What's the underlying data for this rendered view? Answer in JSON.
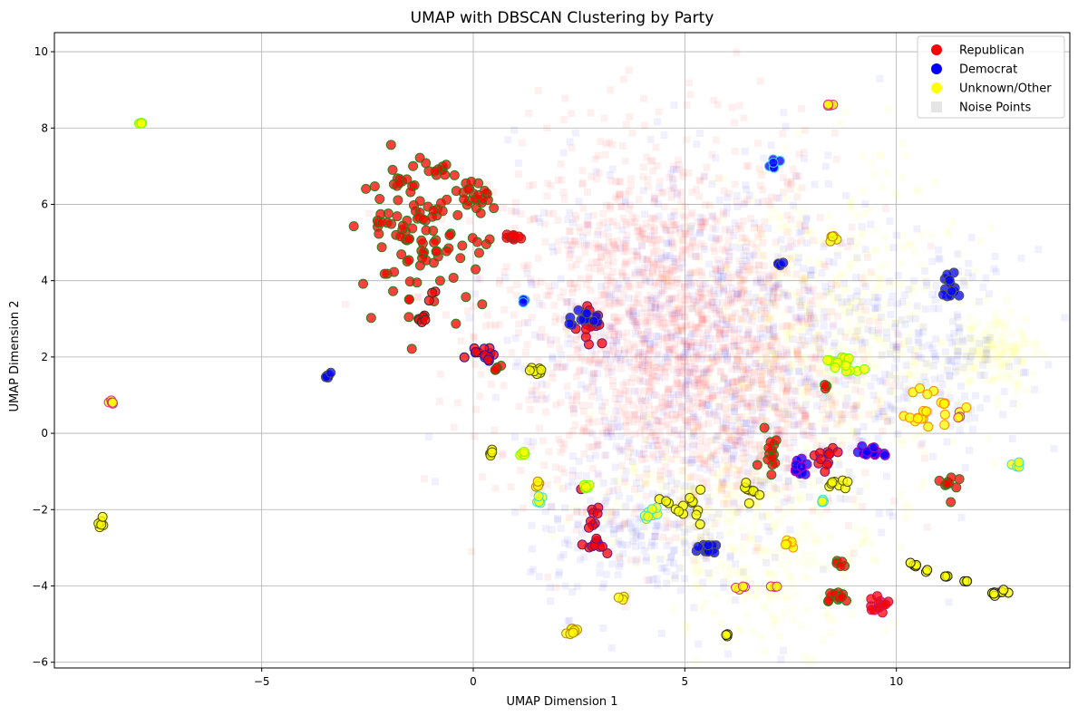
{
  "chart_data": {
    "type": "scatter",
    "title": "UMAP with DBSCAN Clustering by Party",
    "xlabel": "UMAP Dimension 1",
    "ylabel": "UMAP Dimension 2",
    "xlim": [
      -9.9,
      14.1
    ],
    "ylim": [
      -6.15,
      10.5
    ],
    "x_ticks": [
      -5,
      0,
      5,
      10
    ],
    "y_ticks": [
      -6,
      -4,
      -2,
      0,
      2,
      4,
      6,
      8,
      10
    ],
    "x_tick_labels": [
      "−5",
      "0",
      "5",
      "10"
    ],
    "y_tick_labels": [
      "−6",
      "−4",
      "−2",
      "0",
      "2",
      "4",
      "6",
      "8",
      "10"
    ],
    "grid": true,
    "legend_position": "top-right",
    "colors": {
      "Republican": "#ff0000",
      "Democrat": "#0000ff",
      "Unknown/Other": "#ffff00",
      "Noise Points": "#d3d3d3"
    },
    "legend": [
      {
        "label": "Republican",
        "color": "#ff0000",
        "marker": "circle"
      },
      {
        "label": "Democrat",
        "color": "#0000ff",
        "marker": "circle"
      },
      {
        "label": "Unknown/Other",
        "color": "#ffff00",
        "marker": "circle"
      },
      {
        "label": "Noise Points",
        "color": "#d3d3d3",
        "marker": "square"
      }
    ],
    "noise_clouds": [
      {
        "party": "Republican",
        "cx": 4.5,
        "cy": 3.0,
        "sx": 2.0,
        "sy": 2.4,
        "n": 1400
      },
      {
        "party": "Republican",
        "cx": 6.2,
        "cy": 1.0,
        "sx": 1.6,
        "sy": 1.6,
        "n": 500
      },
      {
        "party": "Democrat",
        "cx": 5.8,
        "cy": 2.2,
        "sx": 2.4,
        "sy": 2.6,
        "n": 850
      },
      {
        "party": "Democrat",
        "cx": 4.0,
        "cy": -2.8,
        "sx": 1.3,
        "sy": 0.9,
        "n": 180
      },
      {
        "party": "Democrat",
        "cx": 11.0,
        "cy": 2.3,
        "sx": 1.0,
        "sy": 1.2,
        "n": 160
      },
      {
        "party": "Unknown/Other",
        "cx": 8.5,
        "cy": 2.4,
        "sx": 1.6,
        "sy": 2.2,
        "n": 550
      },
      {
        "party": "Unknown/Other",
        "cx": 7.0,
        "cy": -3.4,
        "sx": 1.3,
        "sy": 1.1,
        "n": 200
      },
      {
        "party": "Unknown/Other",
        "cx": 12.3,
        "cy": 2.2,
        "sx": 0.5,
        "sy": 0.5,
        "n": 150
      },
      {
        "party": "Unknown/Other",
        "cx": 5.0,
        "cy": -1.8,
        "sx": 1.5,
        "sy": 0.8,
        "n": 160
      }
    ],
    "clusters": [
      {
        "party": "Republican",
        "edge": "#2e7d1a",
        "cx": -1.2,
        "cy": 5.2,
        "sx": 0.75,
        "sy": 0.9,
        "n": 110
      },
      {
        "party": "Republican",
        "edge": "#2e7d1a",
        "cx": -0.8,
        "cy": 6.9,
        "sx": 0.1,
        "sy": 0.08,
        "n": 8
      },
      {
        "party": "Republican",
        "edge": "#2e7d1a",
        "cx": -1.7,
        "cy": 6.6,
        "sx": 0.12,
        "sy": 0.08,
        "n": 6
      },
      {
        "party": "Republican",
        "edge": "#2e7d1a",
        "cx": 0.2,
        "cy": 6.2,
        "sx": 0.25,
        "sy": 0.2,
        "n": 14
      },
      {
        "party": "Republican",
        "edge": "#2e7d1a",
        "cx": -2.2,
        "cy": 5.5,
        "sx": 0.08,
        "sy": 0.05,
        "n": 4
      },
      {
        "party": "Republican",
        "edge": "#2e7d1a",
        "cx": 0.6,
        "cy": 1.7,
        "sx": 0.1,
        "sy": 0.04,
        "n": 5
      },
      {
        "party": "Republican",
        "edge": "#2e7d1a",
        "cx": 7.0,
        "cy": -0.3,
        "sx": 0.12,
        "sy": 0.3,
        "n": 14
      },
      {
        "party": "Republican",
        "edge": "#2e7d1a",
        "cx": 8.6,
        "cy": -4.3,
        "sx": 0.2,
        "sy": 0.1,
        "n": 12
      },
      {
        "party": "Republican",
        "edge": "#2e7d1a",
        "cx": 11.3,
        "cy": -1.5,
        "sx": 0.15,
        "sy": 0.3,
        "n": 10
      },
      {
        "party": "Republican",
        "edge": "#2e7d1a",
        "cx": 8.7,
        "cy": -3.4,
        "sx": 0.15,
        "sy": 0.1,
        "n": 5
      },
      {
        "party": "Republican",
        "edge": "#2e7d1a",
        "cx": 8.3,
        "cy": 1.2,
        "sx": 0.05,
        "sy": 0.05,
        "n": 3
      },
      {
        "party": "Republican",
        "edge": "#b22222",
        "cx": 1.0,
        "cy": 5.15,
        "sx": 0.12,
        "sy": 0.06,
        "n": 12
      },
      {
        "party": "Republican",
        "edge": "#333333",
        "cx": -1.2,
        "cy": 3.0,
        "sx": 0.07,
        "sy": 0.05,
        "n": 6
      },
      {
        "party": "Republican",
        "edge": "#333333",
        "cx": -1.0,
        "cy": 3.7,
        "sx": 0.06,
        "sy": 0.2,
        "n": 3
      },
      {
        "party": "Republican",
        "edge": "#1a1aaa",
        "cx": 0.3,
        "cy": 2.1,
        "sx": 0.2,
        "sy": 0.1,
        "n": 14
      },
      {
        "party": "Republican",
        "edge": "#6a1a7a",
        "cx": 2.75,
        "cy": 2.9,
        "sx": 0.15,
        "sy": 0.3,
        "n": 14
      },
      {
        "party": "Republican",
        "edge": "#6a1a7a",
        "cx": 2.8,
        "cy": -2.0,
        "sx": 0.12,
        "sy": 0.25,
        "n": 8
      },
      {
        "party": "Republican",
        "edge": "#6a1a7a",
        "cx": 2.9,
        "cy": -2.9,
        "sx": 0.15,
        "sy": 0.15,
        "n": 12
      },
      {
        "party": "Republican",
        "edge": "#6a1a7a",
        "cx": 8.3,
        "cy": -0.6,
        "sx": 0.15,
        "sy": 0.12,
        "n": 12
      },
      {
        "party": "Republican",
        "edge": "#c2185b",
        "cx": 9.65,
        "cy": -4.5,
        "sx": 0.15,
        "sy": 0.15,
        "n": 14
      },
      {
        "party": "Democrat",
        "edge": "#555555",
        "cx": 2.6,
        "cy": 3.05,
        "sx": 0.2,
        "sy": 0.12,
        "n": 14
      },
      {
        "party": "Democrat",
        "edge": "#555555",
        "cx": -3.45,
        "cy": 1.5,
        "sx": 0.06,
        "sy": 0.05,
        "n": 5
      },
      {
        "party": "Democrat",
        "edge": "#555555",
        "cx": 5.6,
        "cy": -3.0,
        "sx": 0.15,
        "sy": 0.1,
        "n": 14
      },
      {
        "party": "Democrat",
        "edge": "#555555",
        "cx": 11.3,
        "cy": 3.8,
        "sx": 0.18,
        "sy": 0.15,
        "n": 14
      },
      {
        "party": "Democrat",
        "edge": "#555555",
        "cx": 7.25,
        "cy": 4.45,
        "sx": 0.06,
        "sy": 0.05,
        "n": 4
      },
      {
        "party": "Democrat",
        "edge": "#4fc3f7",
        "cx": 7.1,
        "cy": 7.0,
        "sx": 0.06,
        "sy": 0.08,
        "n": 6
      },
      {
        "party": "Democrat",
        "edge": "#4fc3f7",
        "cx": 1.2,
        "cy": 3.5,
        "sx": 0.05,
        "sy": 0.03,
        "n": 3
      },
      {
        "party": "Democrat",
        "edge": "#b000b0",
        "cx": 9.5,
        "cy": -0.5,
        "sx": 0.15,
        "sy": 0.1,
        "n": 14
      },
      {
        "party": "Democrat",
        "edge": "#b000b0",
        "cx": 7.7,
        "cy": -0.9,
        "sx": 0.1,
        "sy": 0.15,
        "n": 10
      },
      {
        "party": "Unknown/Other",
        "edge": "#7cfc00",
        "cx": -7.85,
        "cy": 8.12,
        "sx": 0.03,
        "sy": 0.02,
        "n": 4
      },
      {
        "party": "Unknown/Other",
        "edge": "#7cfc00",
        "cx": 8.7,
        "cy": 1.8,
        "sx": 0.25,
        "sy": 0.12,
        "n": 14
      },
      {
        "party": "Unknown/Other",
        "edge": "#7cfc00",
        "cx": 2.65,
        "cy": -1.4,
        "sx": 0.06,
        "sy": 0.08,
        "n": 6
      },
      {
        "party": "Unknown/Other",
        "edge": "#7cfc00",
        "cx": 1.2,
        "cy": -0.55,
        "sx": 0.06,
        "sy": 0.05,
        "n": 5
      },
      {
        "party": "Unknown/Other",
        "edge": "#d63384",
        "cx": -8.55,
        "cy": 0.82,
        "sx": 0.06,
        "sy": 0.05,
        "n": 5
      },
      {
        "party": "Unknown/Other",
        "edge": "#d63384",
        "cx": 8.45,
        "cy": 8.6,
        "sx": 0.04,
        "sy": 0.04,
        "n": 4
      },
      {
        "party": "Unknown/Other",
        "edge": "#d63384",
        "cx": 11.5,
        "cy": 0.45,
        "sx": 0.05,
        "sy": 0.05,
        "n": 3
      },
      {
        "party": "Unknown/Other",
        "edge": "#d63384",
        "cx": 6.35,
        "cy": -4.05,
        "sx": 0.06,
        "sy": 0.03,
        "n": 4
      },
      {
        "party": "Unknown/Other",
        "edge": "#d63384",
        "cx": 7.1,
        "cy": -4.05,
        "sx": 0.05,
        "sy": 0.03,
        "n": 3
      },
      {
        "party": "Unknown/Other",
        "edge": "#555500",
        "cx": -8.75,
        "cy": -2.35,
        "sx": 0.06,
        "sy": 0.06,
        "n": 6
      },
      {
        "party": "Unknown/Other",
        "edge": "#555500",
        "cx": 0.4,
        "cy": -0.5,
        "sx": 0.06,
        "sy": 0.04,
        "n": 5
      },
      {
        "party": "Unknown/Other",
        "edge": "#555500",
        "cx": 1.5,
        "cy": 1.6,
        "sx": 0.12,
        "sy": 0.06,
        "n": 8
      },
      {
        "party": "Unknown/Other",
        "edge": "#555500",
        "cx": 6.6,
        "cy": -1.5,
        "sx": 0.1,
        "sy": 0.12,
        "n": 8
      },
      {
        "party": "Unknown/Other",
        "edge": "#555500",
        "cx": 5.0,
        "cy": -1.9,
        "sx": 0.2,
        "sy": 0.2,
        "n": 14
      },
      {
        "party": "Unknown/Other",
        "edge": "#555500",
        "cx": 8.6,
        "cy": -1.35,
        "sx": 0.15,
        "sy": 0.1,
        "n": 8
      },
      {
        "party": "Unknown/Other",
        "edge": "#ff8c00",
        "cx": 10.7,
        "cy": 0.7,
        "sx": 0.35,
        "sy": 0.3,
        "n": 22
      },
      {
        "party": "Unknown/Other",
        "edge": "#ff8c00",
        "cx": 7.5,
        "cy": -2.9,
        "sx": 0.08,
        "sy": 0.05,
        "n": 6
      },
      {
        "party": "Unknown/Other",
        "edge": "#b8860b",
        "cx": 2.35,
        "cy": -5.2,
        "sx": 0.1,
        "sy": 0.06,
        "n": 8
      },
      {
        "party": "Unknown/Other",
        "edge": "#b8860b",
        "cx": 8.5,
        "cy": 5.15,
        "sx": 0.06,
        "sy": 0.06,
        "n": 5
      },
      {
        "party": "Unknown/Other",
        "edge": "#b8860b",
        "cx": 3.5,
        "cy": -4.3,
        "sx": 0.04,
        "sy": 0.03,
        "n": 3
      },
      {
        "party": "Unknown/Other",
        "edge": "#b8860b",
        "cx": 1.5,
        "cy": -1.35,
        "sx": 0.06,
        "sy": 0.05,
        "n": 4
      },
      {
        "party": "Unknown/Other",
        "edge": "#222222",
        "cx": 6.0,
        "cy": -5.27,
        "sx": 0.03,
        "sy": 0.02,
        "n": 3
      },
      {
        "party": "Unknown/Other",
        "edge": "#222222",
        "cx": 12.4,
        "cy": -4.2,
        "sx": 0.12,
        "sy": 0.06,
        "n": 8
      },
      {
        "party": "Unknown/Other",
        "edge": "#222222",
        "cx": 10.4,
        "cy": -3.45,
        "sx": 0.06,
        "sy": 0.03,
        "n": 4
      },
      {
        "party": "Unknown/Other",
        "edge": "#222222",
        "cx": 11.2,
        "cy": -3.75,
        "sx": 0.05,
        "sy": 0.03,
        "n": 3
      },
      {
        "party": "Unknown/Other",
        "edge": "#222222",
        "cx": 11.7,
        "cy": -3.9,
        "sx": 0.05,
        "sy": 0.03,
        "n": 3
      },
      {
        "party": "Unknown/Other",
        "edge": "#222222",
        "cx": 10.7,
        "cy": -3.6,
        "sx": 0.03,
        "sy": 0.02,
        "n": 2
      },
      {
        "party": "Unknown/Other",
        "edge": "#40e0d0",
        "cx": 1.55,
        "cy": -1.8,
        "sx": 0.06,
        "sy": 0.06,
        "n": 5
      },
      {
        "party": "Unknown/Other",
        "edge": "#40e0d0",
        "cx": 4.2,
        "cy": -2.1,
        "sx": 0.1,
        "sy": 0.08,
        "n": 8
      },
      {
        "party": "Unknown/Other",
        "edge": "#40e0d0",
        "cx": 12.8,
        "cy": -0.85,
        "sx": 0.06,
        "sy": 0.05,
        "n": 5
      },
      {
        "party": "Unknown/Other",
        "edge": "#40e0d0",
        "cx": 8.3,
        "cy": -1.75,
        "sx": 0.05,
        "sy": 0.05,
        "n": 4
      }
    ]
  }
}
